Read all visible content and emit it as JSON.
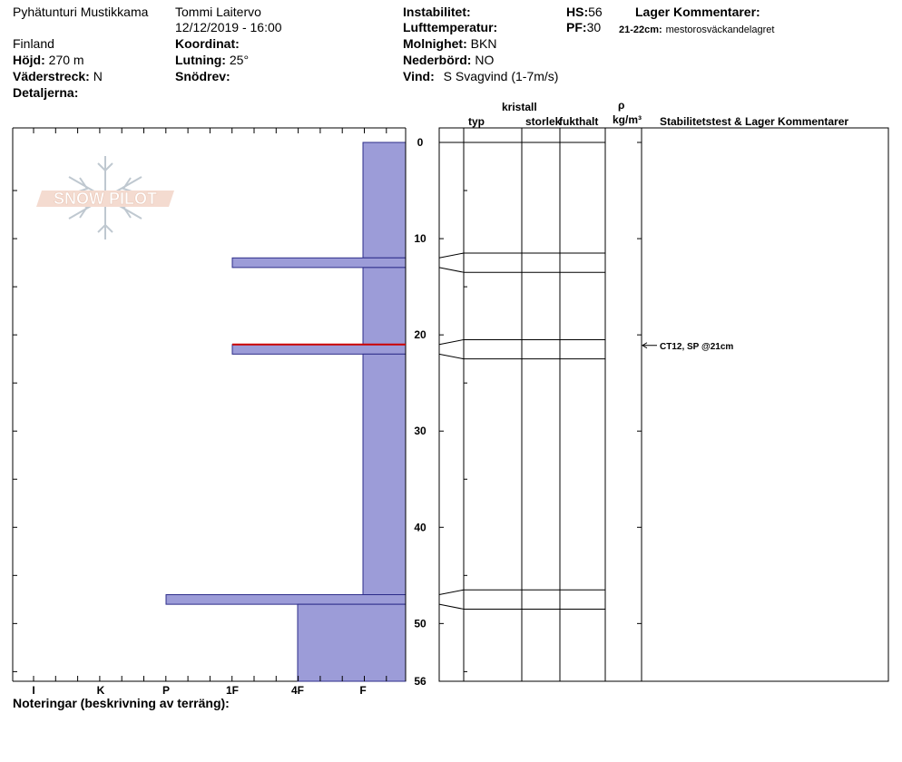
{
  "header": {
    "location": "Pyhätunturi Mustikkama",
    "country": "Finland",
    "elevation_label": "Höjd:",
    "elevation_value": "270 m",
    "aspect_label": "Väderstreck:",
    "aspect_value": "N",
    "details_label": "Detaljerna:",
    "observer": "Tommi Laitervo",
    "datetime": "12/12/2019 - 16:00",
    "coordinates_label": "Koordinat:",
    "slope_label": "Lutning:",
    "slope_value": "25°",
    "drift_label": "Snödrev:",
    "instability_label": "Instabilitet:",
    "air_temp_label": "Lufttemperatur:",
    "sky_label": "Molnighet:",
    "sky_value": "BKN",
    "precip_label": "Nederbörd:",
    "precip_value": "NO",
    "wind_label": "Vind:",
    "wind_value": "S Svagvind (1-7m/s)",
    "hs_label": "HS:",
    "hs_value": "56",
    "pf_label": "PF:",
    "pf_value": "30",
    "layer_comments_label": "Lager Kommentarer:",
    "layer_comment_depth": "21-22cm:",
    "layer_comment_text": "mestorosväckandelagret"
  },
  "logo_text": "SNOW PILOT",
  "columns": {
    "type": "typ",
    "crystal": "kristall",
    "size": "storlek",
    "moisture": "fukthalt",
    "rho": "ρ",
    "density": "kg/m³",
    "stability": "Stabilitetstest & Lager Kommentarer"
  },
  "footer_note": "Noteringar (beskrivning av terräng):",
  "test_annotation": "CT12, SP @21cm",
  "colors": {
    "layer_fill": "#9c9cd8",
    "layer_stroke": "#2d2d8a",
    "weak_layer": "#cc0000"
  },
  "chart_data": {
    "type": "bar",
    "orientation": "horizontal",
    "y_axis": {
      "label": "",
      "range": [
        0,
        56
      ],
      "ticks": [
        0,
        10,
        20,
        30,
        40,
        50,
        56
      ],
      "inverted": true
    },
    "x_axis": {
      "categories": [
        "I",
        "K",
        "P",
        "1F",
        "4F",
        "F"
      ]
    },
    "hand_hardness_layers": [
      {
        "top": 0,
        "bottom": 12,
        "hardness": "F"
      },
      {
        "top": 12,
        "bottom": 13,
        "hardness": "1F"
      },
      {
        "top": 13,
        "bottom": 21,
        "hardness": "F"
      },
      {
        "top": 21,
        "bottom": 22,
        "hardness": "1F"
      },
      {
        "top": 22,
        "bottom": 47,
        "hardness": "F"
      },
      {
        "top": 47,
        "bottom": 48,
        "hardness": "P"
      },
      {
        "top": 48,
        "bottom": 56,
        "hardness": "4F"
      }
    ],
    "weak_layer_depth": 21,
    "layer_boundaries": [
      0,
      11.5,
      13.5,
      20.5,
      22.5,
      46.5,
      48.5
    ],
    "stability_tests": [
      {
        "depth": 21,
        "label": "CT12, SP @21cm"
      }
    ]
  }
}
